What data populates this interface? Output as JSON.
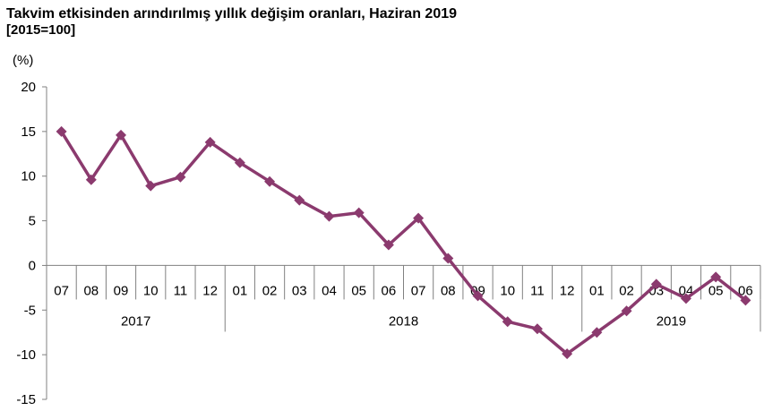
{
  "chart_data": {
    "type": "line",
    "title": "Takvim etkisinden arındırılmış yıllık değişim oranları, Haziran 2019",
    "subtitle": "[2015=100]",
    "ylabel": "(%)",
    "xlabel": "",
    "ylim": [
      -15,
      20
    ],
    "yticks": [
      20,
      15,
      10,
      5,
      0,
      -5,
      -10,
      -15
    ],
    "categories": [
      "07",
      "08",
      "09",
      "10",
      "11",
      "12",
      "01",
      "02",
      "03",
      "04",
      "05",
      "06",
      "07",
      "08",
      "09",
      "10",
      "11",
      "12",
      "01",
      "02",
      "03",
      "04",
      "05",
      "06"
    ],
    "year_groups": [
      {
        "label": "2017",
        "count": 6
      },
      {
        "label": "2018",
        "count": 12
      },
      {
        "label": "2019",
        "count": 6
      }
    ],
    "series": [
      {
        "color": "#8B3A6E",
        "marker": "diamond",
        "values": [
          15.0,
          9.6,
          14.6,
          8.9,
          9.9,
          13.8,
          11.5,
          9.4,
          7.3,
          5.5,
          5.9,
          2.3,
          5.3,
          0.8,
          -3.4,
          -6.3,
          -7.1,
          -9.9,
          -7.5,
          -5.1,
          -2.1,
          -3.7,
          -1.3,
          -3.9
        ]
      }
    ],
    "grid": false,
    "legend": "none"
  }
}
